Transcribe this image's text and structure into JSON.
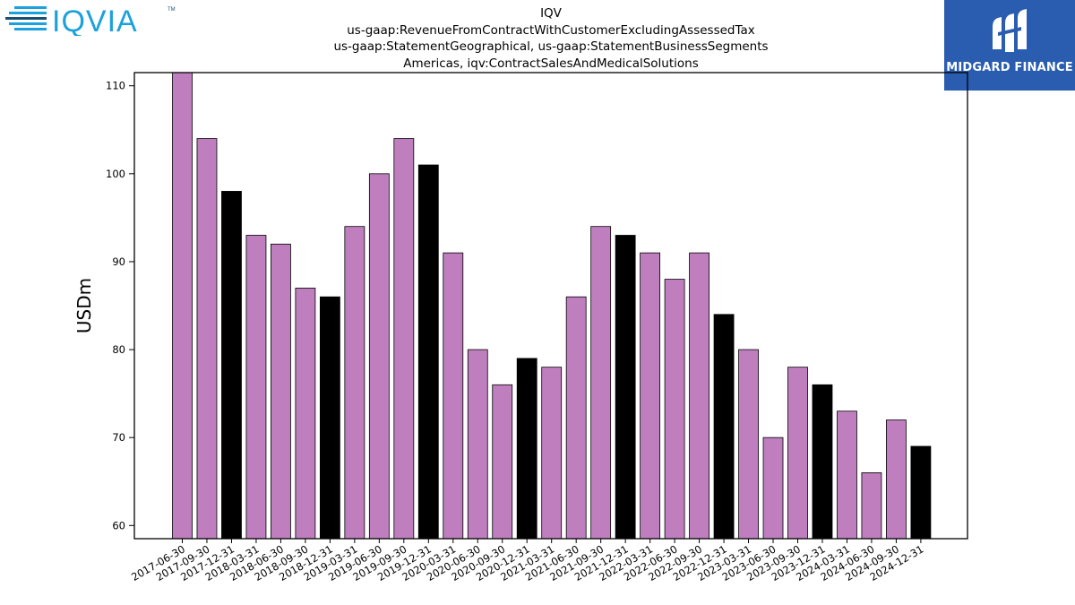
{
  "header": {
    "title_lines": [
      "IQV",
      "us-gaap:RevenueFromContractWithCustomerExcludingAssessedTax",
      "us-gaap:StatementGeographical, us-gaap:StatementBusinessSegments",
      "Americas, iqv:ContractSalesAndMedicalSolutions"
    ],
    "company_logo_text": "IQVIA",
    "company_logo_tm": "TM",
    "brand_logo_text": "MIDGARD FINANCE"
  },
  "colors": {
    "bar_default": "#bf7fbf",
    "bar_year_end": "#000000",
    "axis": "#000000",
    "iqvia_blue": "#1ba1dc",
    "iqvia_dark": "#1b4f72",
    "midgard_bg": "#2a5db0"
  },
  "chart_data": {
    "type": "bar",
    "title": "",
    "xlabel": "",
    "ylabel": "USDm",
    "ylim": [
      58.5,
      111.5
    ],
    "yticks": [
      60,
      70,
      80,
      90,
      100,
      110
    ],
    "grid": false,
    "legend": "none",
    "categories": [
      "2017-06-30",
      "2017-09-30",
      "2017-12-31",
      "2018-03-31",
      "2018-06-30",
      "2018-09-30",
      "2018-12-31",
      "2019-03-31",
      "2019-06-30",
      "2019-09-30",
      "2019-12-31",
      "2020-03-31",
      "2020-06-30",
      "2020-09-30",
      "2020-12-31",
      "2021-03-31",
      "2021-06-30",
      "2021-09-30",
      "2021-12-31",
      "2022-03-31",
      "2022-06-30",
      "2022-09-30",
      "2022-12-31",
      "2023-03-31",
      "2023-06-30",
      "2023-09-30",
      "2023-12-31",
      "2024-03-31",
      "2024-06-30",
      "2024-09-30",
      "2024-12-31"
    ],
    "values": [
      112,
      104,
      98,
      93,
      92,
      87,
      86,
      94,
      100,
      104,
      101,
      91,
      80,
      76,
      79,
      78,
      86,
      94,
      93,
      91,
      88,
      91,
      84,
      80,
      70,
      78,
      76,
      73,
      66,
      72,
      69
    ]
  }
}
